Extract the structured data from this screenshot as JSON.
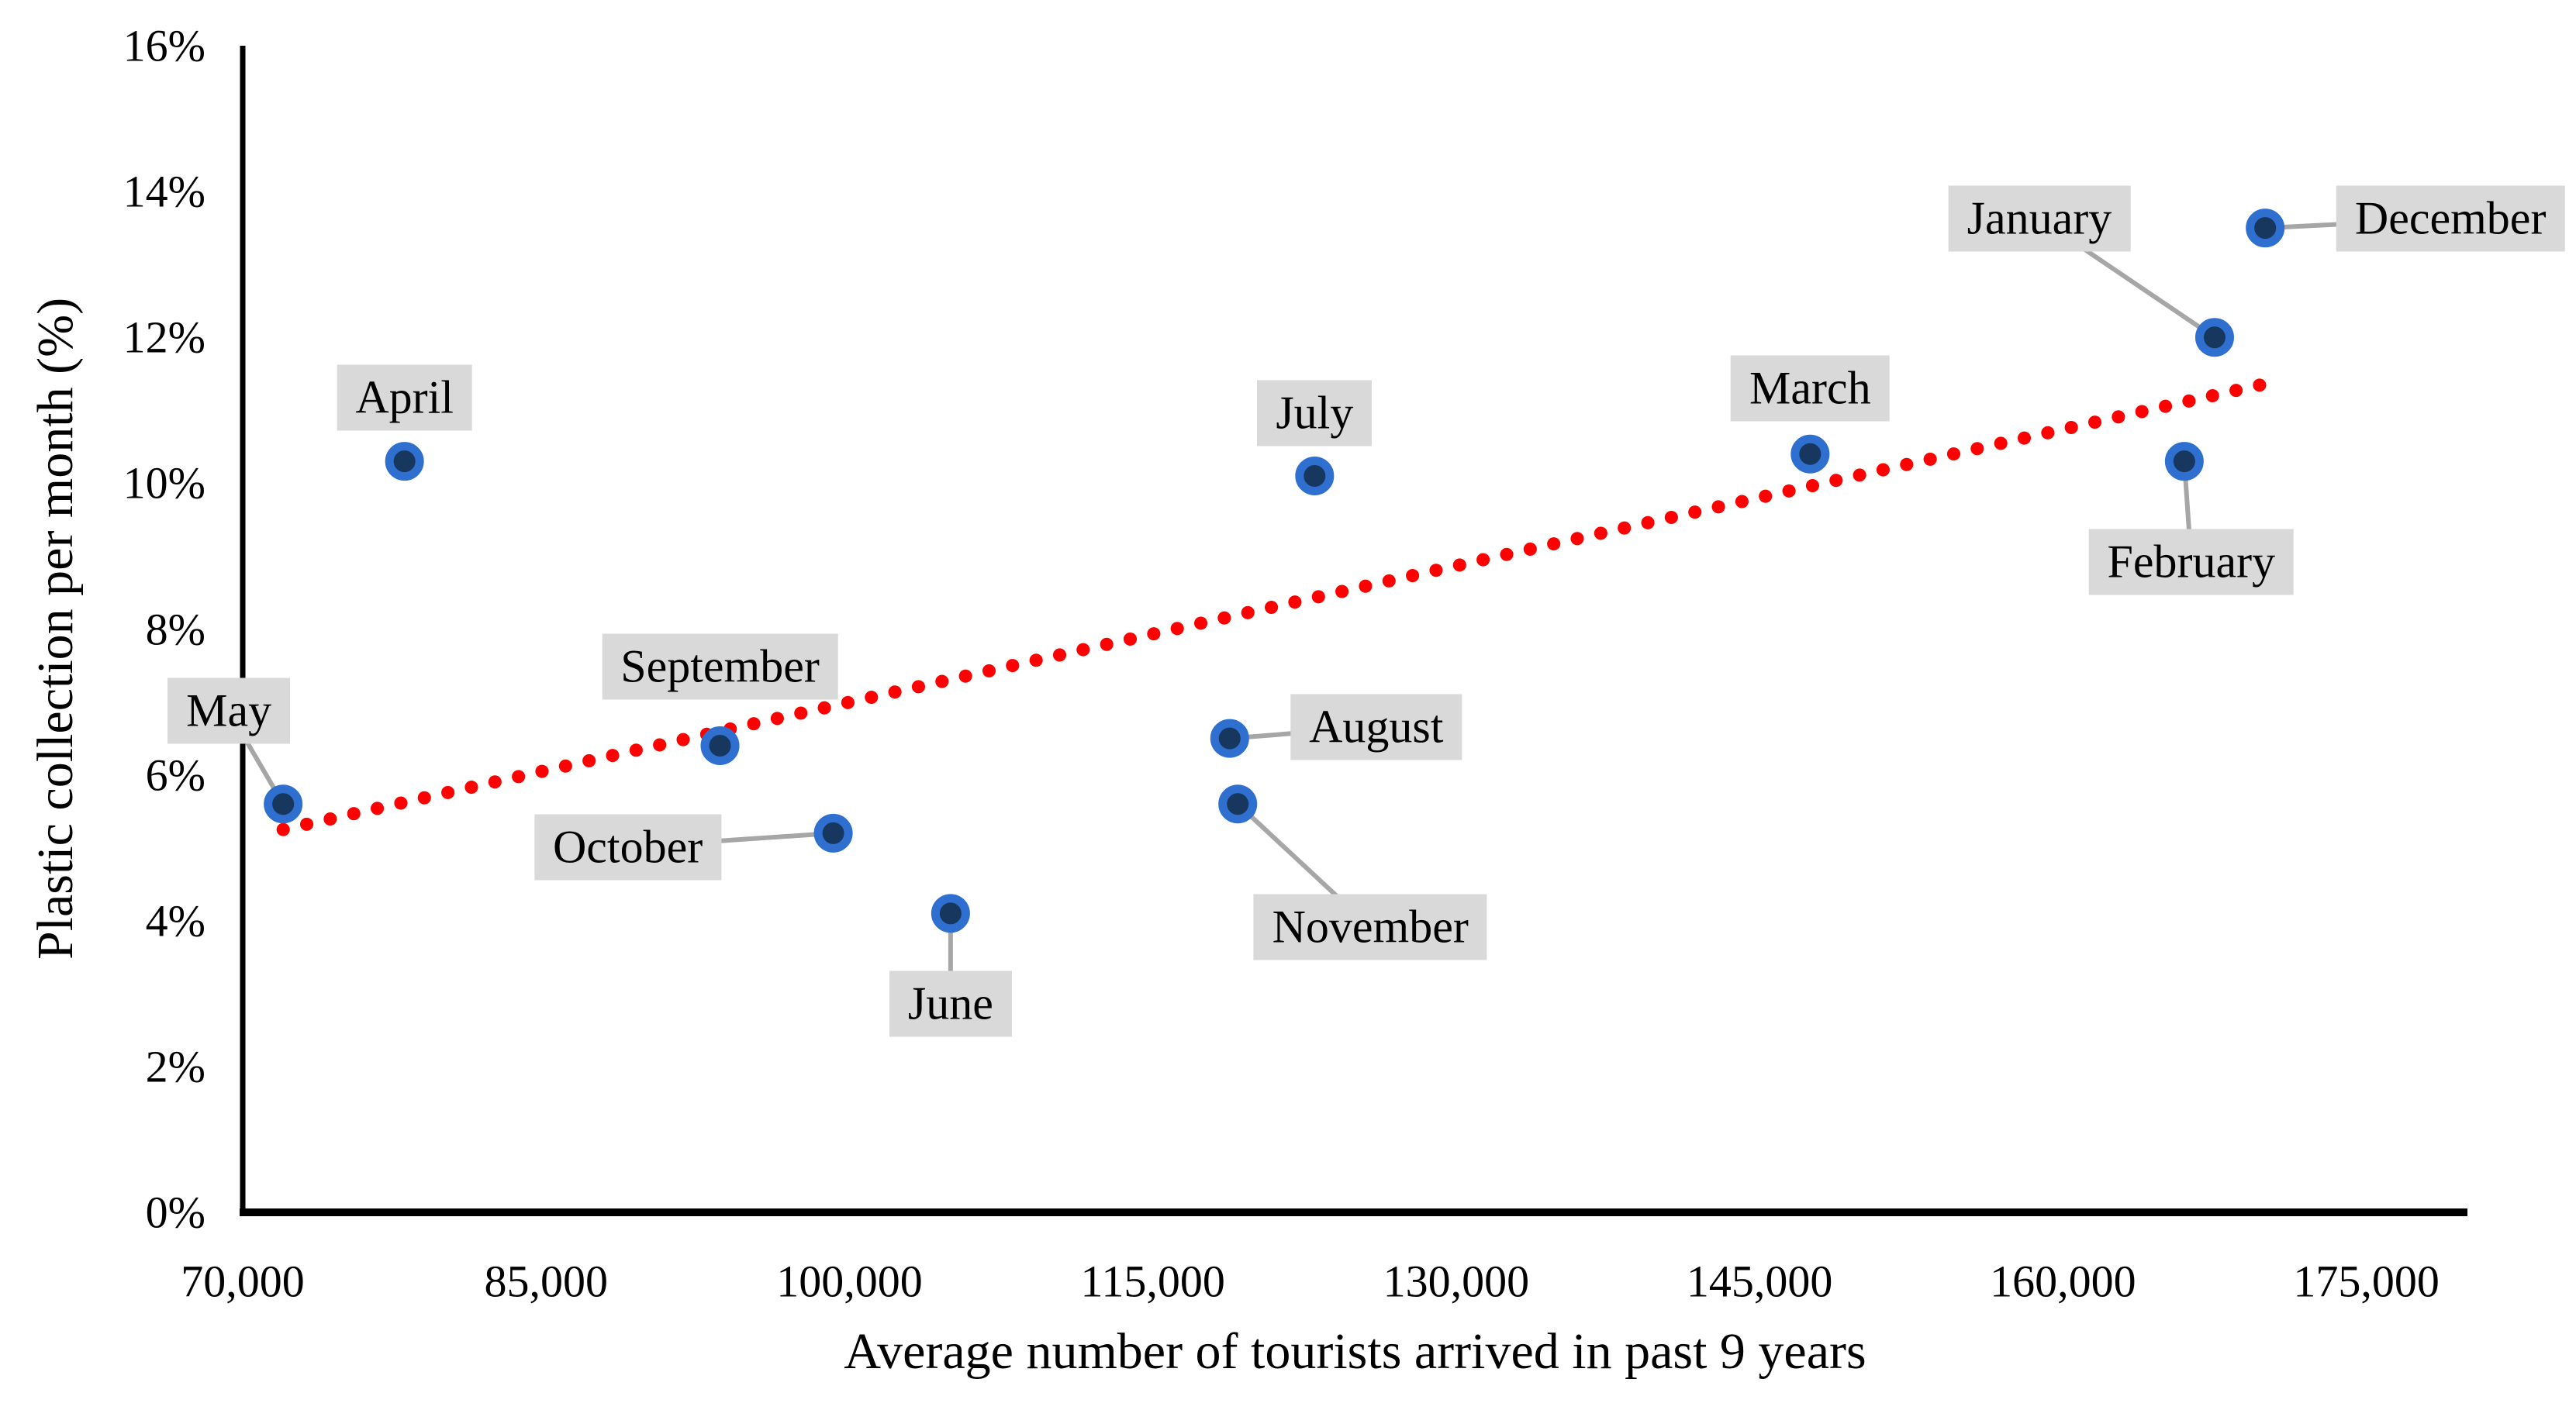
{
  "chart_data": {
    "type": "scatter",
    "title": "",
    "xlabel": "Average number of tourists arrived in past 9 years",
    "ylabel": "Plastic collection per month (%)",
    "xlim": [
      70000,
      180000
    ],
    "ylim": [
      0,
      16
    ],
    "x_ticks": [
      70000,
      85000,
      100000,
      115000,
      130000,
      145000,
      160000,
      175000
    ],
    "x_tick_labels": [
      "70,000",
      "85,000",
      "100,000",
      "115,000",
      "130,000",
      "145,000",
      "160,000",
      "175,000"
    ],
    "y_ticks": [
      0,
      2,
      4,
      6,
      8,
      10,
      12,
      14,
      16
    ],
    "y_tick_labels": [
      "0%",
      "2%",
      "4%",
      "6%",
      "8%",
      "10%",
      "12%",
      "14%",
      "16%"
    ],
    "grid": false,
    "legend": false,
    "points": [
      {
        "label": "January",
        "x": 167500,
        "y": 12.0,
        "label_offset": [
          -226,
          -153
        ],
        "leader": true
      },
      {
        "label": "February",
        "x": 166000,
        "y": 10.3,
        "label_offset": [
          9,
          130
        ],
        "leader": true
      },
      {
        "label": "March",
        "x": 147500,
        "y": 10.4,
        "label_offset": [
          0,
          -85
        ],
        "leader": false
      },
      {
        "label": "April",
        "x": 78000,
        "y": 10.3,
        "label_offset": [
          0,
          -82
        ],
        "leader": false
      },
      {
        "label": "May",
        "x": 72000,
        "y": 5.6,
        "label_offset": [
          -70,
          -120
        ],
        "leader": true
      },
      {
        "label": "June",
        "x": 105000,
        "y": 4.1,
        "label_offset": [
          0,
          117
        ],
        "leader": true
      },
      {
        "label": "July",
        "x": 123000,
        "y": 10.1,
        "label_offset": [
          0,
          -81
        ],
        "leader": false
      },
      {
        "label": "August",
        "x": 118800,
        "y": 6.5,
        "label_offset": [
          189,
          -15
        ],
        "leader": true
      },
      {
        "label": "September",
        "x": 93600,
        "y": 6.4,
        "label_offset": [
          0,
          -102
        ],
        "leader": false
      },
      {
        "label": "October",
        "x": 99200,
        "y": 5.2,
        "label_offset": [
          -265,
          18
        ],
        "leader": true
      },
      {
        "label": "November",
        "x": 119200,
        "y": 5.6,
        "label_offset": [
          171,
          159
        ],
        "leader": true
      },
      {
        "label": "December",
        "x": 170000,
        "y": 13.5,
        "label_offset": [
          239,
          -12
        ],
        "leader": true
      }
    ],
    "trendline": {
      "style": "dotted",
      "color": "#ff0000",
      "x_start": 72000,
      "y_start": 5.25,
      "x_end": 169800,
      "y_end": 11.35
    }
  },
  "style": {
    "marker_fill": "#17375e",
    "marker_ring": "#2e6fd0",
    "label_bg": "#d9d9d9",
    "leader_color": "#a6a6a6",
    "axis_color": "#000000",
    "trend_color": "#ff0000"
  }
}
